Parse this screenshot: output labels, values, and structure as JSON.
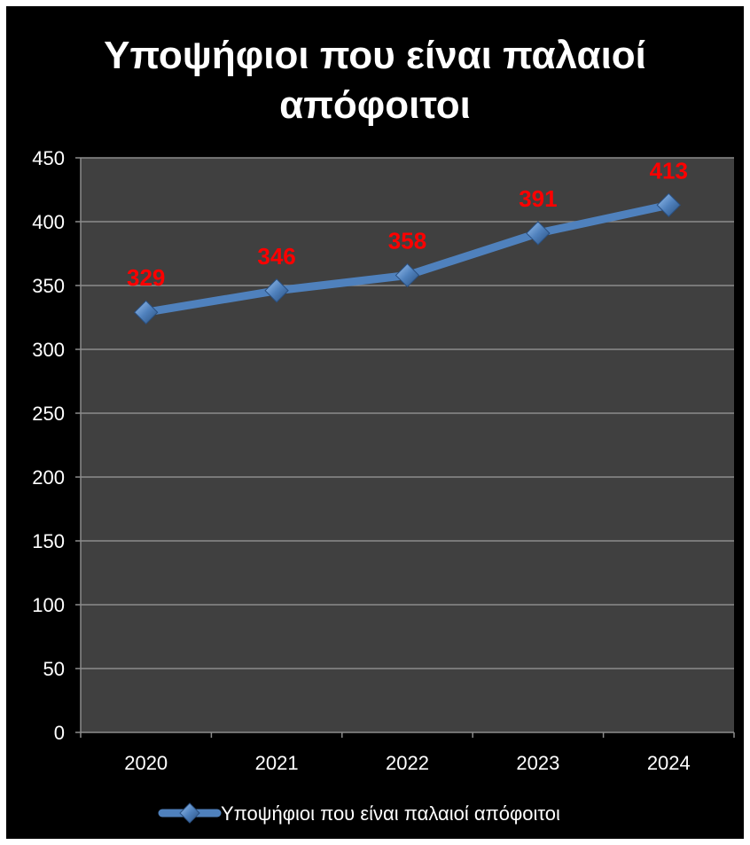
{
  "chart_data": {
    "type": "line",
    "title_lines": [
      "Υποψήφιοι που είναι παλαιοί",
      "απόφοιτοι"
    ],
    "categories": [
      "2020",
      "2021",
      "2022",
      "2023",
      "2024"
    ],
    "series": [
      {
        "name": "Υποψήφιοι που είναι παλαιοί απόφοιτοι",
        "values": [
          329,
          346,
          358,
          391,
          413
        ]
      }
    ],
    "y_ticks": [
      "0",
      "50",
      "100",
      "150",
      "200",
      "250",
      "300",
      "350",
      "400",
      "450"
    ],
    "ylim": [
      0,
      450
    ],
    "y_step": 50,
    "grid": true,
    "legend_position": "bottom",
    "data_labels": [
      "329",
      "346",
      "358",
      "391",
      "413"
    ],
    "colors": {
      "background": "#000000",
      "plot_area": "#404040",
      "gridline": "#8c8c8c",
      "axis": "#8c8c8c",
      "line": "#4f81bd",
      "marker": "#4f81bd",
      "data_label": "#ff0000",
      "text": "#ffffff"
    }
  }
}
